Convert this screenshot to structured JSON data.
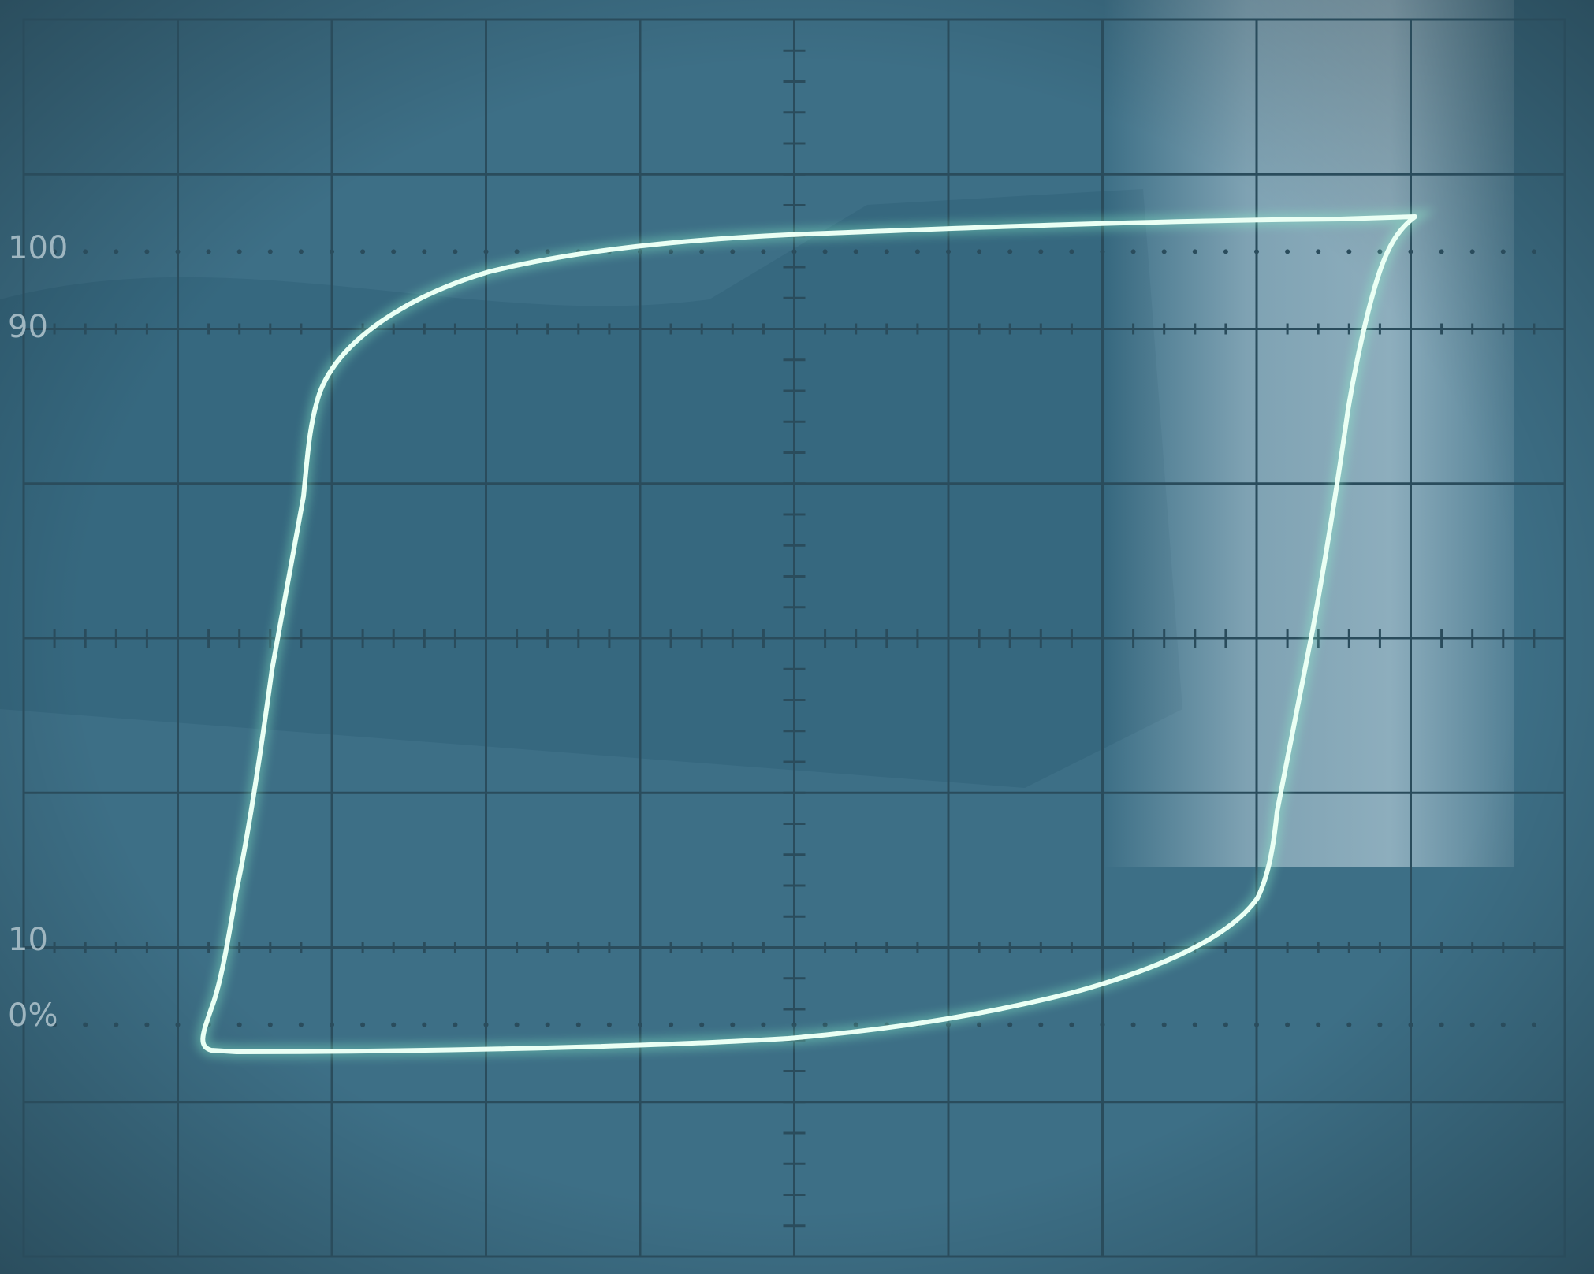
{
  "scope": {
    "graticule_labels": {
      "top_level": "100",
      "upper_threshold": "90",
      "lower_threshold": "10",
      "bottom_level": "0%"
    },
    "colors": {
      "screen_bg": "#3d6f86",
      "grid": "#2a4c5c",
      "trace": "#eafff4",
      "trace_glow": "#8fffd0",
      "label": "#9fb6c0",
      "glare": "#cfe1ea"
    },
    "trace_shape": "hysteresis-loop"
  }
}
